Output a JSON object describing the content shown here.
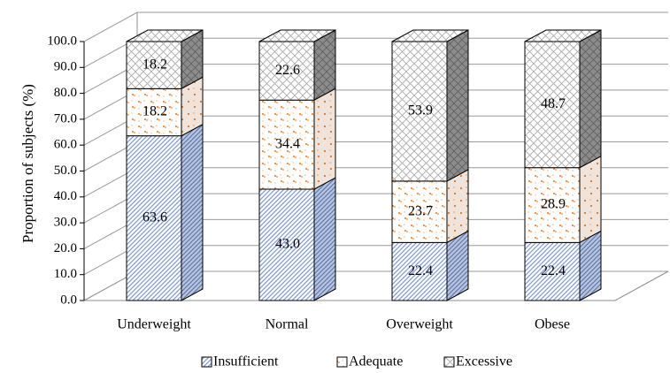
{
  "chart_data": {
    "type": "bar",
    "stacked": true,
    "style": "3d",
    "ylabel": "Proportion of subjects (%)",
    "ylim": [
      0,
      100
    ],
    "ytick_step": 10,
    "ytick_labels": [
      "0.0",
      "10.0",
      "20.0",
      "30.0",
      "40.0",
      "50.0",
      "60.0",
      "70.0",
      "80.0",
      "90.0",
      "100.0"
    ],
    "categories": [
      "Underweight",
      "Normal",
      "Overweight",
      "Obese"
    ],
    "series": [
      {
        "name": "Insufficient",
        "values": [
          63.6,
          43.0,
          22.4,
          22.4
        ],
        "labels": [
          "63.6",
          "43.0",
          "22.4",
          "22.4"
        ],
        "color": "#9fb4d9"
      },
      {
        "name": "Adequate",
        "values": [
          18.2,
          34.4,
          23.7,
          28.9
        ],
        "labels": [
          "18.2",
          "34.4",
          "23.7",
          "28.9"
        ],
        "color": "#f2a46a"
      },
      {
        "name": "Excessive",
        "values": [
          18.2,
          22.6,
          53.9,
          48.7
        ],
        "labels": [
          "18.2",
          "22.6",
          "53.9",
          "48.7"
        ],
        "color": "#b8b8b8"
      }
    ],
    "grid": true,
    "legend_position": "bottom"
  }
}
